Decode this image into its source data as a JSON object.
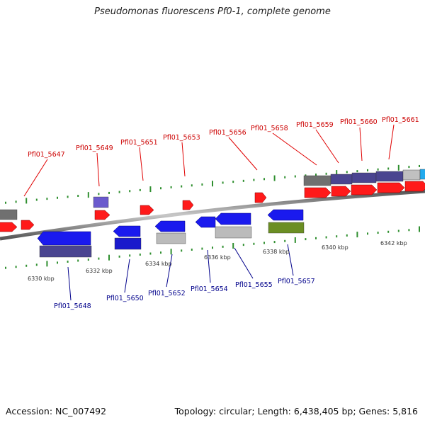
{
  "title": "Pseudomonas fluorescens Pf0-1, complete genome",
  "footer": {
    "accession": "Accession: NC_007492",
    "summary": "Topology: circular; Length: 6,438,405 bp; Genes: 5,816"
  },
  "colors": {
    "forward_gene": "#ff1a1a",
    "reverse_gene": "#1a1aee",
    "label_forward": "#cc0000",
    "label_reverse": "#00008b",
    "cog_purple": "#4a4590",
    "cog_grey": "#bbbbbb",
    "cog_green": "#6b8e23",
    "tick_green": "#2f8f2f"
  },
  "scale_labels": [
    "6330 kbp",
    "6332 kbp",
    "6334 kbp",
    "6336 kbp",
    "6338 kbp",
    "6340 kbp",
    "6342 kbp"
  ],
  "genes_forward": [
    "Pfl01_5647",
    "Pfl01_5649",
    "Pfl01_5651",
    "Pfl01_5653",
    "Pfl01_5656",
    "Pfl01_5658",
    "Pfl01_5659",
    "Pfl01_5660",
    "Pfl01_5661"
  ],
  "genes_reverse": [
    "Pfl01_5648",
    "Pfl01_5650",
    "Pfl01_5652",
    "Pfl01_5654",
    "Pfl01_5655",
    "Pfl01_5657"
  ]
}
